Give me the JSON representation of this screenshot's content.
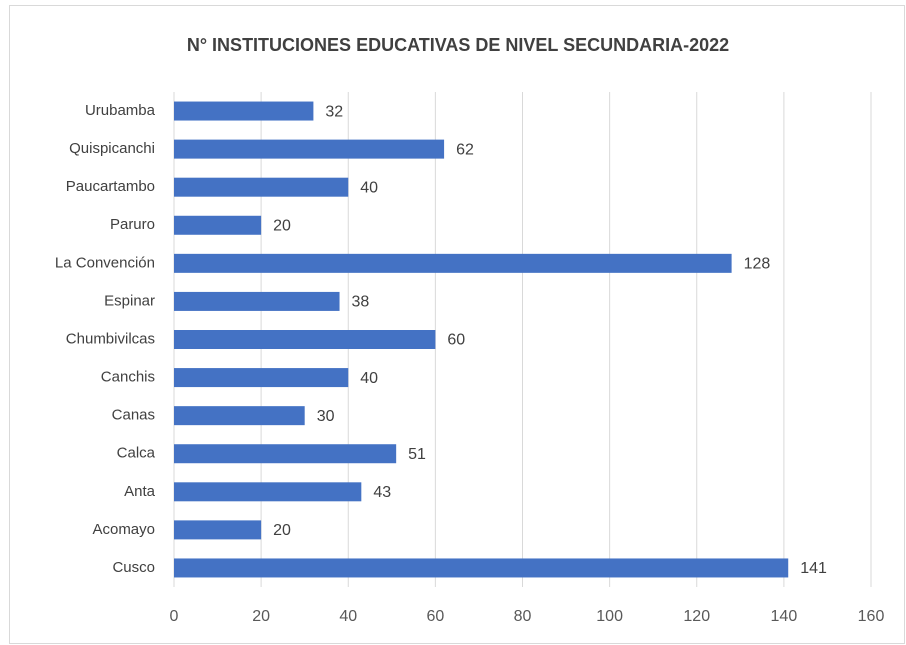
{
  "chart_data": {
    "type": "bar",
    "orientation": "horizontal",
    "title": "N° INSTITUCIONES EDUCATIVAS DE NIVEL SECUNDARIA-2022",
    "categories": [
      "Urubamba",
      "Quispicanchi",
      "Paucartambo",
      "Paruro",
      "La Convención",
      "Espinar",
      "Chumbivilcas",
      "Canchis",
      "Canas",
      "Calca",
      "Anta",
      "Acomayo",
      "Cusco"
    ],
    "values": [
      32,
      62,
      40,
      20,
      128,
      38,
      60,
      40,
      30,
      51,
      43,
      20,
      141
    ],
    "color": "#4472c4",
    "xlim": [
      0,
      160
    ],
    "xticks": [
      0,
      20,
      40,
      60,
      80,
      100,
      120,
      140,
      160
    ],
    "grid": true
  }
}
